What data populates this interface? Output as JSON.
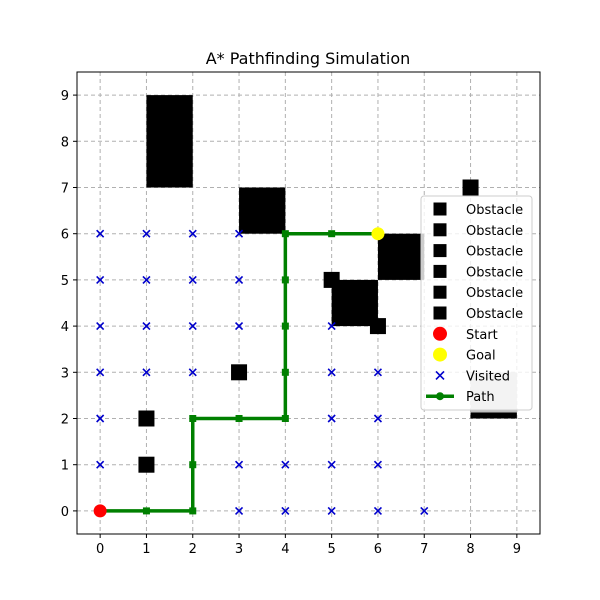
{
  "chart_data": {
    "type": "scatter",
    "title": "A* Pathfinding Simulation",
    "xlabel": "",
    "ylabel": "",
    "xlim": [
      -0.5,
      9.5
    ],
    "ylim": [
      -0.5,
      9.5
    ],
    "x_ticks": [
      0,
      1,
      2,
      3,
      4,
      5,
      6,
      7,
      8,
      9
    ],
    "y_ticks": [
      0,
      1,
      2,
      3,
      4,
      5,
      6,
      7,
      8,
      9
    ],
    "x_tick_labels": [
      "0",
      "1",
      "2",
      "3",
      "4",
      "5",
      "6",
      "7",
      "8",
      "9"
    ],
    "y_tick_labels": [
      "0",
      "1",
      "2",
      "3",
      "4",
      "5",
      "6",
      "7",
      "8",
      "9"
    ],
    "grid": true,
    "legend_position": "center-right",
    "obstacle_rects": [
      {
        "x": [
          1,
          2
        ],
        "y": [
          7,
          9
        ]
      },
      {
        "x": [
          3,
          4
        ],
        "y": [
          6,
          7
        ]
      },
      {
        "x": [
          6,
          7
        ],
        "y": [
          5,
          6
        ]
      },
      {
        "x": [
          5,
          6
        ],
        "y": [
          4,
          5
        ]
      },
      {
        "x": [
          8,
          9
        ],
        "y": [
          2,
          3
        ]
      }
    ],
    "obstacle_points": [
      {
        "x": 8,
        "y": 7
      },
      {
        "x": 5,
        "y": 5
      },
      {
        "x": 6,
        "y": 4
      },
      {
        "x": 3,
        "y": 3
      },
      {
        "x": 1,
        "y": 2
      },
      {
        "x": 1,
        "y": 1
      }
    ],
    "start": {
      "x": 0,
      "y": 0
    },
    "goal": {
      "x": 6,
      "y": 6
    },
    "visited": [
      [
        0,
        6
      ],
      [
        1,
        6
      ],
      [
        2,
        6
      ],
      [
        3,
        6
      ],
      [
        0,
        5
      ],
      [
        1,
        5
      ],
      [
        2,
        5
      ],
      [
        3,
        5
      ],
      [
        0,
        4
      ],
      [
        1,
        4
      ],
      [
        2,
        4
      ],
      [
        3,
        4
      ],
      [
        5,
        4
      ],
      [
        0,
        3
      ],
      [
        1,
        3
      ],
      [
        2,
        3
      ],
      [
        5,
        3
      ],
      [
        6,
        3
      ],
      [
        0,
        2
      ],
      [
        5,
        2
      ],
      [
        6,
        2
      ],
      [
        0,
        1
      ],
      [
        3,
        1
      ],
      [
        4,
        1
      ],
      [
        5,
        1
      ],
      [
        6,
        1
      ],
      [
        3,
        0
      ],
      [
        4,
        0
      ],
      [
        5,
        0
      ],
      [
        6,
        0
      ],
      [
        7,
        0
      ]
    ],
    "path": [
      [
        0,
        0
      ],
      [
        1,
        0
      ],
      [
        2,
        0
      ],
      [
        2,
        1
      ],
      [
        2,
        2
      ],
      [
        3,
        2
      ],
      [
        4,
        2
      ],
      [
        4,
        3
      ],
      [
        4,
        4
      ],
      [
        4,
        5
      ],
      [
        4,
        6
      ],
      [
        5,
        6
      ],
      [
        6,
        6
      ]
    ],
    "colors": {
      "obstacle": "#000000",
      "obstacle_bottom": "#c0c0c0",
      "start": "#ff0000",
      "goal": "#ffff00",
      "visited": "#0000cc",
      "path": "#008000",
      "grid": "#b0b0b0"
    },
    "legend": [
      {
        "label": "Obstacle",
        "marker": "square"
      },
      {
        "label": "Obstacle",
        "marker": "square"
      },
      {
        "label": "Obstacle",
        "marker": "square"
      },
      {
        "label": "Obstacle",
        "marker": "square"
      },
      {
        "label": "Obstacle",
        "marker": "square"
      },
      {
        "label": "Obstacle",
        "marker": "square"
      },
      {
        "label": "Start",
        "marker": "circle-red"
      },
      {
        "label": "Goal",
        "marker": "circle-yellow"
      },
      {
        "label": "Visited",
        "marker": "x-blue"
      },
      {
        "label": "Path",
        "marker": "line-green"
      }
    ]
  }
}
